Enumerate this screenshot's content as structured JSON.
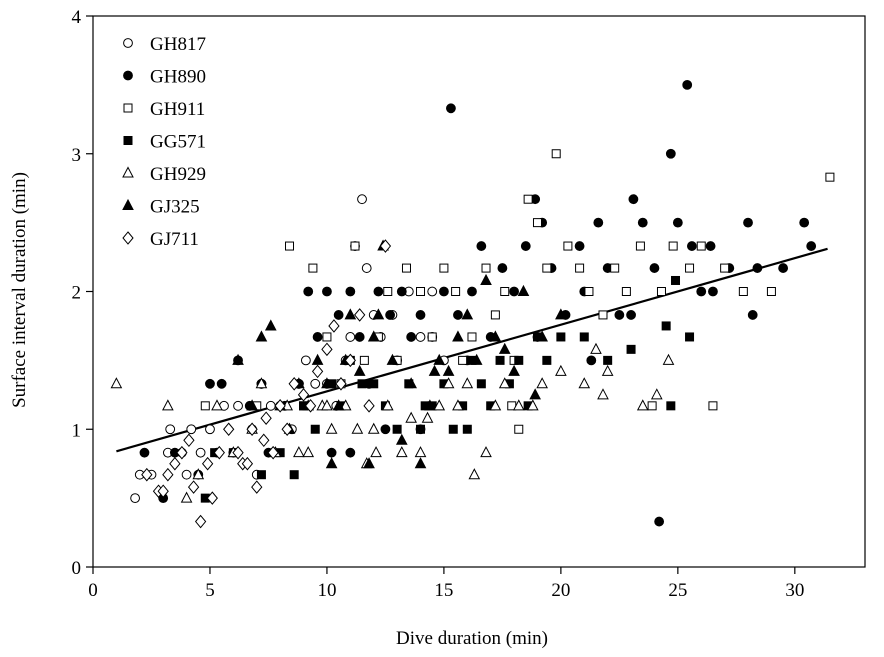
{
  "chart_data": {
    "type": "scatter",
    "title": "",
    "xlabel": "Dive duration (min)",
    "ylabel": "Surface interval duration (min)",
    "xlim": [
      0,
      33
    ],
    "ylim": [
      0,
      4
    ],
    "xticks": [
      0,
      5,
      10,
      15,
      20,
      25,
      30
    ],
    "yticks": [
      0,
      1,
      2,
      3,
      4
    ],
    "grid": false,
    "legend_position": "top-left",
    "regression_line": {
      "x": [
        1.0,
        31.4
      ],
      "y": [
        0.84,
        2.31
      ]
    },
    "series": [
      {
        "name": "GH817",
        "marker": "circle-open",
        "points": [
          [
            1.8,
            0.5
          ],
          [
            2.0,
            0.67
          ],
          [
            2.5,
            0.67
          ],
          [
            3.2,
            0.83
          ],
          [
            3.3,
            1.0
          ],
          [
            3.8,
            0.83
          ],
          [
            4.2,
            1.0
          ],
          [
            4.6,
            0.83
          ],
          [
            5.0,
            1.0
          ],
          [
            5.3,
            0.83
          ],
          [
            5.6,
            1.17
          ],
          [
            6.2,
            1.17
          ],
          [
            6.8,
            1.0
          ],
          [
            7.2,
            1.33
          ],
          [
            7.6,
            1.17
          ],
          [
            8.0,
            1.17
          ],
          [
            8.5,
            1.0
          ],
          [
            8.8,
            1.33
          ],
          [
            9.1,
            1.5
          ],
          [
            9.5,
            1.33
          ],
          [
            10.0,
            1.33
          ],
          [
            10.4,
            1.17
          ],
          [
            10.8,
            1.5
          ],
          [
            11.0,
            1.67
          ],
          [
            11.2,
            2.33
          ],
          [
            11.5,
            2.67
          ],
          [
            11.7,
            2.17
          ],
          [
            12.0,
            1.83
          ],
          [
            12.3,
            1.67
          ],
          [
            12.8,
            1.83
          ],
          [
            13.0,
            1.5
          ],
          [
            13.5,
            2.0
          ],
          [
            14.0,
            1.67
          ],
          [
            14.5,
            2.0
          ],
          [
            15.0,
            1.5
          ],
          [
            7.0,
            0.67
          ],
          [
            6.0,
            0.83
          ],
          [
            4.0,
            0.67
          ]
        ]
      },
      {
        "name": "GH890",
        "marker": "circle-filled",
        "points": [
          [
            2.2,
            0.83
          ],
          [
            3.0,
            0.5
          ],
          [
            3.5,
            0.83
          ],
          [
            4.5,
            0.67
          ],
          [
            5.0,
            1.33
          ],
          [
            5.5,
            1.33
          ],
          [
            6.2,
            1.5
          ],
          [
            6.7,
            1.17
          ],
          [
            7.2,
            1.33
          ],
          [
            7.5,
            0.83
          ],
          [
            8.2,
            1.17
          ],
          [
            8.8,
            1.33
          ],
          [
            9.2,
            2.0
          ],
          [
            9.6,
            1.67
          ],
          [
            10.0,
            2.0
          ],
          [
            10.5,
            1.83
          ],
          [
            11.0,
            2.0
          ],
          [
            11.4,
            1.67
          ],
          [
            11.8,
            1.33
          ],
          [
            12.2,
            2.0
          ],
          [
            12.7,
            1.83
          ],
          [
            13.2,
            2.0
          ],
          [
            13.6,
            1.67
          ],
          [
            14.0,
            1.83
          ],
          [
            14.5,
            1.67
          ],
          [
            15.3,
            3.33
          ],
          [
            15.0,
            2.0
          ],
          [
            15.6,
            1.83
          ],
          [
            16.2,
            2.0
          ],
          [
            16.6,
            2.33
          ],
          [
            17.0,
            1.67
          ],
          [
            17.5,
            2.17
          ],
          [
            18.0,
            2.0
          ],
          [
            18.5,
            2.33
          ],
          [
            18.9,
            2.67
          ],
          [
            19.2,
            2.5
          ],
          [
            19.6,
            2.17
          ],
          [
            20.2,
            1.83
          ],
          [
            20.8,
            2.33
          ],
          [
            21.3,
            1.5
          ],
          [
            21.6,
            2.5
          ],
          [
            22.0,
            2.17
          ],
          [
            22.5,
            1.83
          ],
          [
            23.1,
            2.67
          ],
          [
            23.5,
            2.5
          ],
          [
            24.0,
            2.17
          ],
          [
            24.7,
            3.0
          ],
          [
            24.2,
            0.33
          ],
          [
            25.0,
            2.5
          ],
          [
            25.4,
            3.5
          ],
          [
            25.6,
            2.33
          ],
          [
            26.0,
            2.0
          ],
          [
            26.4,
            2.33
          ],
          [
            27.2,
            2.17
          ],
          [
            28.0,
            2.5
          ],
          [
            28.4,
            2.17
          ],
          [
            29.5,
            2.17
          ],
          [
            30.4,
            2.5
          ],
          [
            30.7,
            2.33
          ],
          [
            10.2,
            0.83
          ],
          [
            11.0,
            0.83
          ],
          [
            12.5,
            1.0
          ],
          [
            14.0,
            1.0
          ],
          [
            16.0,
            1.5
          ],
          [
            19.0,
            1.67
          ],
          [
            21.0,
            2.0
          ],
          [
            23.0,
            1.83
          ],
          [
            26.5,
            2.0
          ],
          [
            28.2,
            1.83
          ]
        ]
      },
      {
        "name": "GH911",
        "marker": "square-open",
        "points": [
          [
            4.8,
            1.17
          ],
          [
            7.0,
            1.17
          ],
          [
            8.4,
            2.33
          ],
          [
            9.0,
            1.17
          ],
          [
            9.4,
            2.17
          ],
          [
            10.0,
            1.67
          ],
          [
            10.6,
            1.33
          ],
          [
            11.2,
            2.33
          ],
          [
            11.6,
            1.5
          ],
          [
            12.2,
            1.67
          ],
          [
            12.6,
            2.0
          ],
          [
            13.0,
            1.5
          ],
          [
            13.4,
            2.17
          ],
          [
            14.0,
            2.0
          ],
          [
            14.5,
            1.67
          ],
          [
            15.0,
            2.17
          ],
          [
            15.5,
            2.0
          ],
          [
            16.2,
            1.67
          ],
          [
            16.8,
            2.17
          ],
          [
            17.2,
            1.83
          ],
          [
            17.6,
            2.0
          ],
          [
            17.9,
            1.17
          ],
          [
            18.2,
            1.0
          ],
          [
            18.6,
            2.67
          ],
          [
            19.0,
            2.5
          ],
          [
            19.4,
            2.17
          ],
          [
            19.8,
            3.0
          ],
          [
            20.3,
            2.33
          ],
          [
            20.8,
            2.17
          ],
          [
            21.2,
            2.0
          ],
          [
            21.8,
            1.83
          ],
          [
            22.3,
            2.17
          ],
          [
            22.8,
            2.0
          ],
          [
            23.4,
            2.33
          ],
          [
            23.9,
            1.17
          ],
          [
            24.3,
            2.0
          ],
          [
            24.8,
            2.33
          ],
          [
            25.5,
            2.17
          ],
          [
            26.0,
            2.33
          ],
          [
            26.5,
            1.17
          ],
          [
            27.0,
            2.17
          ],
          [
            27.8,
            2.0
          ],
          [
            29.0,
            2.0
          ],
          [
            31.5,
            2.83
          ],
          [
            15.8,
            1.5
          ],
          [
            18.0,
            1.5
          ]
        ]
      },
      {
        "name": "GG571",
        "marker": "square-filled",
        "points": [
          [
            4.8,
            0.5
          ],
          [
            5.2,
            0.83
          ],
          [
            6.0,
            0.83
          ],
          [
            7.2,
            0.67
          ],
          [
            8.0,
            0.83
          ],
          [
            8.6,
            0.67
          ],
          [
            9.0,
            1.17
          ],
          [
            9.5,
            1.0
          ],
          [
            10.2,
            1.33
          ],
          [
            10.6,
            1.17
          ],
          [
            11.0,
            1.5
          ],
          [
            11.5,
            1.33
          ],
          [
            12.0,
            1.33
          ],
          [
            12.5,
            1.17
          ],
          [
            13.0,
            1.0
          ],
          [
            13.5,
            1.33
          ],
          [
            14.0,
            1.0
          ],
          [
            14.5,
            1.17
          ],
          [
            15.0,
            1.33
          ],
          [
            15.4,
            1.0
          ],
          [
            15.8,
            1.17
          ],
          [
            16.2,
            1.5
          ],
          [
            16.6,
            1.33
          ],
          [
            17.0,
            1.17
          ],
          [
            17.4,
            1.5
          ],
          [
            17.8,
            1.33
          ],
          [
            18.2,
            1.5
          ],
          [
            18.6,
            1.17
          ],
          [
            19.0,
            1.67
          ],
          [
            19.4,
            1.5
          ],
          [
            20.0,
            1.67
          ],
          [
            21.0,
            1.67
          ],
          [
            22.0,
            1.5
          ],
          [
            23.0,
            1.58
          ],
          [
            24.5,
            1.75
          ],
          [
            24.7,
            1.17
          ],
          [
            24.9,
            2.08
          ],
          [
            25.5,
            1.67
          ],
          [
            14.2,
            1.17
          ],
          [
            16.0,
            1.0
          ]
        ]
      },
      {
        "name": "GH929",
        "marker": "triangle-open",
        "points": [
          [
            1.0,
            1.33
          ],
          [
            3.2,
            1.17
          ],
          [
            4.0,
            0.5
          ],
          [
            4.5,
            0.67
          ],
          [
            5.3,
            1.17
          ],
          [
            6.0,
            0.83
          ],
          [
            6.8,
            1.0
          ],
          [
            7.2,
            1.33
          ],
          [
            7.8,
            0.83
          ],
          [
            8.3,
            1.17
          ],
          [
            8.8,
            0.83
          ],
          [
            9.2,
            0.83
          ],
          [
            9.8,
            1.17
          ],
          [
            10.2,
            1.0
          ],
          [
            10.8,
            1.17
          ],
          [
            11.3,
            1.0
          ],
          [
            11.7,
            0.75
          ],
          [
            12.1,
            0.83
          ],
          [
            12.6,
            1.17
          ],
          [
            13.2,
            0.83
          ],
          [
            13.6,
            1.08
          ],
          [
            14.0,
            0.83
          ],
          [
            14.3,
            1.08
          ],
          [
            14.8,
            1.17
          ],
          [
            15.2,
            1.33
          ],
          [
            15.6,
            1.17
          ],
          [
            16.0,
            1.33
          ],
          [
            16.3,
            0.67
          ],
          [
            16.8,
            0.83
          ],
          [
            17.2,
            1.17
          ],
          [
            17.6,
            1.33
          ],
          [
            18.2,
            1.17
          ],
          [
            18.8,
            1.17
          ],
          [
            19.2,
            1.33
          ],
          [
            20.0,
            1.42
          ],
          [
            21.0,
            1.33
          ],
          [
            21.5,
            1.58
          ],
          [
            21.8,
            1.25
          ],
          [
            22.0,
            1.42
          ],
          [
            23.5,
            1.17
          ],
          [
            24.1,
            1.25
          ],
          [
            24.6,
            1.5
          ],
          [
            10.0,
            1.17
          ],
          [
            12.0,
            1.0
          ]
        ]
      },
      {
        "name": "GJ325",
        "marker": "triangle-filled",
        "points": [
          [
            6.2,
            1.5
          ],
          [
            6.8,
            1.17
          ],
          [
            7.2,
            1.67
          ],
          [
            7.6,
            1.75
          ],
          [
            8.0,
            1.17
          ],
          [
            8.4,
            1.0
          ],
          [
            8.8,
            1.33
          ],
          [
            9.2,
            1.17
          ],
          [
            9.6,
            1.5
          ],
          [
            10.0,
            1.33
          ],
          [
            10.5,
            1.17
          ],
          [
            10.8,
            1.5
          ],
          [
            11.0,
            1.83
          ],
          [
            11.4,
            1.42
          ],
          [
            11.8,
            0.75
          ],
          [
            12.0,
            1.67
          ],
          [
            12.4,
            2.33
          ],
          [
            12.8,
            1.5
          ],
          [
            13.2,
            0.92
          ],
          [
            13.6,
            1.33
          ],
          [
            14.0,
            0.75
          ],
          [
            14.4,
            1.17
          ],
          [
            14.8,
            1.5
          ],
          [
            15.2,
            1.42
          ],
          [
            15.6,
            1.67
          ],
          [
            16.0,
            1.83
          ],
          [
            16.4,
            1.5
          ],
          [
            16.8,
            2.08
          ],
          [
            17.2,
            1.67
          ],
          [
            17.6,
            1.58
          ],
          [
            18.0,
            1.42
          ],
          [
            18.4,
            2.0
          ],
          [
            18.9,
            1.25
          ],
          [
            19.2,
            1.67
          ],
          [
            20.0,
            1.83
          ],
          [
            12.2,
            1.83
          ],
          [
            14.6,
            1.42
          ],
          [
            10.2,
            0.75
          ]
        ]
      },
      {
        "name": "GJ711",
        "marker": "diamond-open",
        "points": [
          [
            2.3,
            0.67
          ],
          [
            2.8,
            0.55
          ],
          [
            3.2,
            0.67
          ],
          [
            3.5,
            0.75
          ],
          [
            3.8,
            0.83
          ],
          [
            4.1,
            0.92
          ],
          [
            4.3,
            0.58
          ],
          [
            4.6,
            0.33
          ],
          [
            4.9,
            0.75
          ],
          [
            5.1,
            0.5
          ],
          [
            5.4,
            0.83
          ],
          [
            5.8,
            1.0
          ],
          [
            6.2,
            0.83
          ],
          [
            6.4,
            0.75
          ],
          [
            6.8,
            1.0
          ],
          [
            7.0,
            0.58
          ],
          [
            7.3,
            0.92
          ],
          [
            7.7,
            0.83
          ],
          [
            8.0,
            1.17
          ],
          [
            8.3,
            1.0
          ],
          [
            8.6,
            1.33
          ],
          [
            9.0,
            1.25
          ],
          [
            9.3,
            1.17
          ],
          [
            9.6,
            1.42
          ],
          [
            10.0,
            1.58
          ],
          [
            10.3,
            1.75
          ],
          [
            10.6,
            1.33
          ],
          [
            11.0,
            1.5
          ],
          [
            11.4,
            1.83
          ],
          [
            11.8,
            1.17
          ],
          [
            12.5,
            2.33
          ],
          [
            3.0,
            0.55
          ],
          [
            6.6,
            0.75
          ],
          [
            7.4,
            1.08
          ]
        ]
      }
    ]
  }
}
